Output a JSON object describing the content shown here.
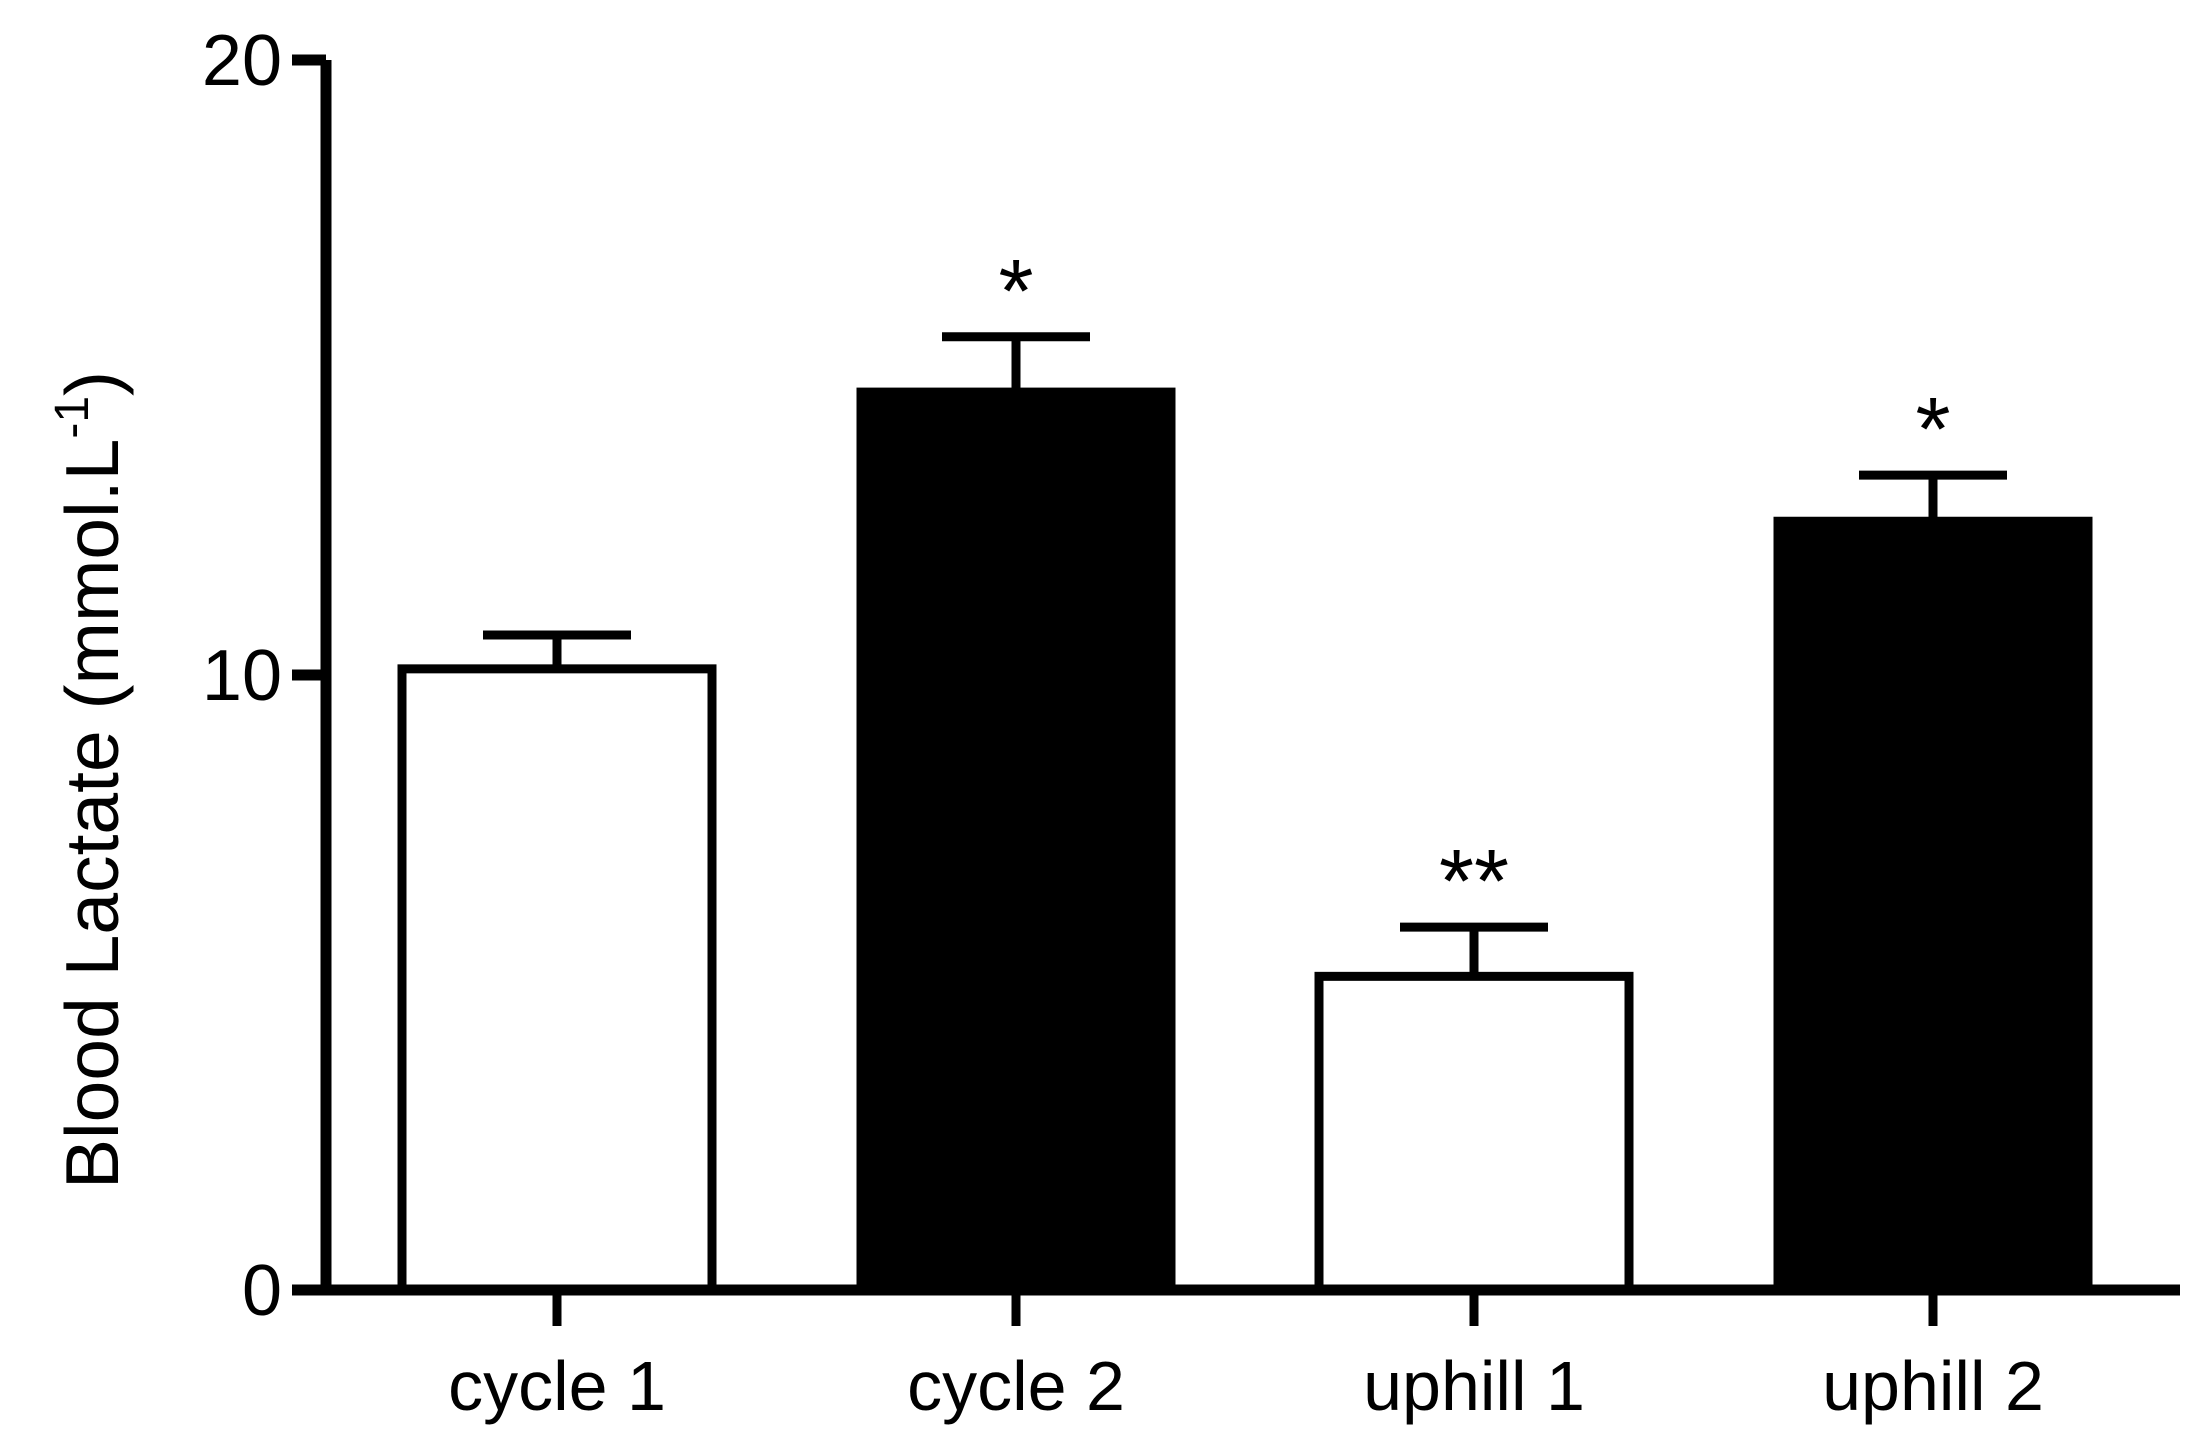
{
  "chart_data": {
    "type": "bar",
    "title": "",
    "xlabel": "",
    "ylabel": "Blood Lactate (mmol.L",
    "ylabel_superscript": "-1",
    "ylabel_close": ")",
    "categories": [
      "cycle 1",
      "cycle 2",
      "uphill 1",
      "uphill 2"
    ],
    "values": [
      10.1,
      14.6,
      5.1,
      12.5
    ],
    "errors": [
      0.55,
      0.9,
      0.8,
      0.75
    ],
    "significance": [
      "",
      "*",
      "**",
      "*"
    ],
    "fills": [
      "#ffffff",
      "#000000",
      "#ffffff",
      "#000000"
    ],
    "ylim": [
      0,
      20
    ],
    "yticks": [
      0,
      10,
      20
    ],
    "ytick_labels": [
      "0",
      "10",
      "20"
    ],
    "grid": false,
    "legend": "none"
  }
}
